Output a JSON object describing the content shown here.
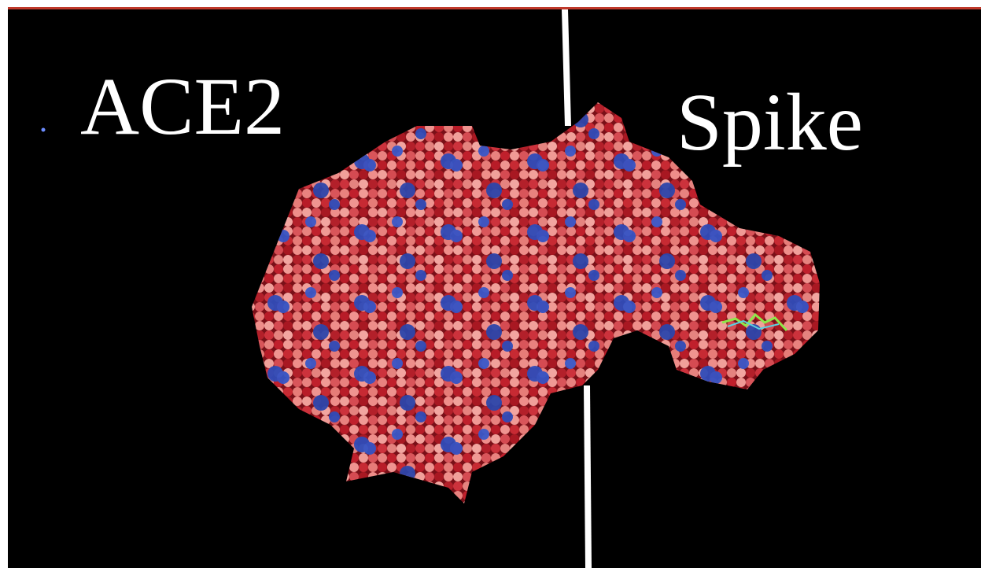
{
  "labels": {
    "left": "ACE2",
    "right": "Spike"
  }
}
